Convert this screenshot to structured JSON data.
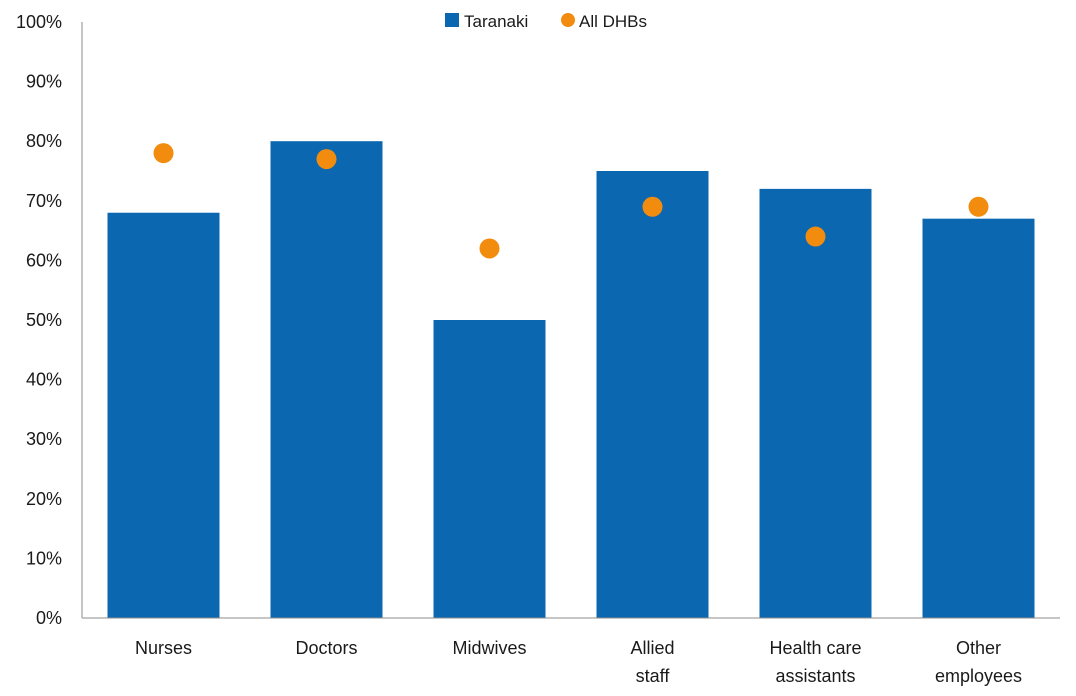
{
  "chart_data": {
    "type": "bar",
    "categories": [
      [
        "Nurses"
      ],
      [
        "Doctors"
      ],
      [
        "Midwives"
      ],
      [
        "Allied",
        "staff"
      ],
      [
        "Health care",
        "assistants"
      ],
      [
        "Other",
        "employees"
      ]
    ],
    "series": [
      {
        "name": "Taranaki",
        "kind": "bar",
        "color": "#0c67b1",
        "values": [
          68,
          80,
          50,
          75,
          72,
          67
        ]
      },
      {
        "name": "All DHBs",
        "kind": "dot",
        "color": "#f28c0f",
        "values": [
          78,
          77,
          62,
          69,
          64,
          69
        ]
      }
    ],
    "ylim": [
      0,
      100
    ],
    "yticks": [
      0,
      10,
      20,
      30,
      40,
      50,
      60,
      70,
      80,
      90,
      100
    ],
    "ytick_labels": [
      "0%",
      "10%",
      "20%",
      "30%",
      "40%",
      "50%",
      "60%",
      "70%",
      "80%",
      "90%",
      "100%"
    ],
    "grid": false,
    "legend_position": "top-center",
    "title": "",
    "xlabel": "",
    "ylabel": ""
  }
}
